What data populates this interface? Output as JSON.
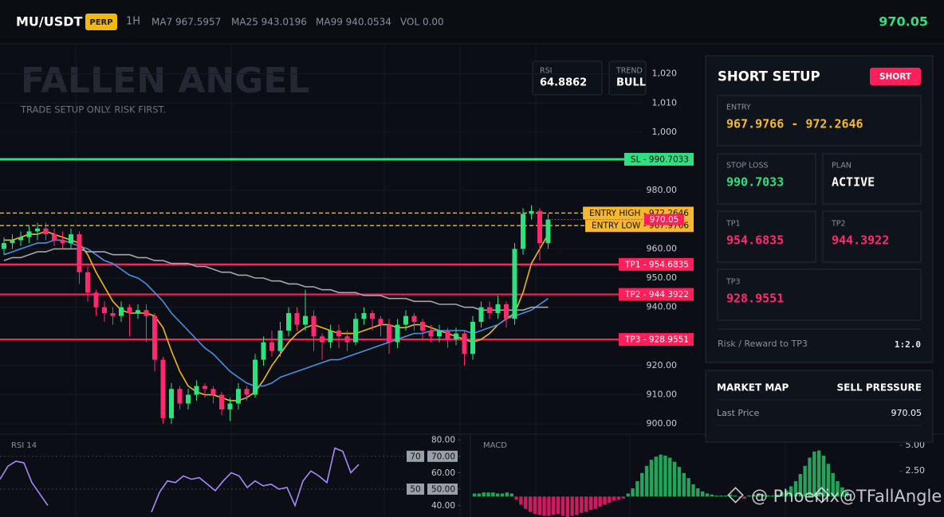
{
  "header": {
    "symbol": "MU/USDT",
    "badge": "PERP",
    "interval": "1H",
    "stats": [
      "MA7 967.5957",
      "MA25 943.0196",
      "MA99 940.0534",
      "VOL 0.00"
    ],
    "price": "970.05"
  },
  "watermark": {
    "title": "FALLEN ANGEL",
    "subtitle": "TRADE SETUP ONLY. RISK FIRST.",
    "credit": "@ Phoenix@TFallAngle"
  },
  "indicators": [
    {
      "label": "RSI",
      "value": "64.8862"
    },
    {
      "label": "TREND",
      "value": "BULL"
    }
  ],
  "panel": {
    "title": "SHORT SETUP",
    "badge": "SHORT",
    "entry": {
      "label": "ENTRY",
      "value": "967.9766 - 972.2646"
    },
    "cells": [
      {
        "label": "STOP LOSS",
        "value": "990.7033"
      },
      {
        "label": "PLAN",
        "value": "ACTIVE"
      },
      {
        "label": "TP1",
        "value": "954.6835"
      },
      {
        "label": "TP2",
        "value": "944.3922"
      },
      {
        "label": "TP3",
        "value": "928.9551"
      }
    ],
    "footer": {
      "label": "Risk / Reward to TP3",
      "value": "1:2.0"
    }
  },
  "market": {
    "title": "MARKET MAP",
    "status": "SELL PRESSURE",
    "rows": [
      [
        "Last Price",
        "970.05"
      ]
    ]
  },
  "chart_data": [
    {
      "type": "candlestick",
      "open": [
        960,
        962,
        963,
        964,
        966,
        967,
        965,
        963,
        962,
        965,
        952,
        945,
        940,
        938,
        937,
        940,
        938,
        939,
        937,
        922,
        902,
        912,
        907,
        910,
        913,
        912,
        910,
        905,
        907,
        912,
        910,
        922,
        928,
        925,
        932,
        938,
        934,
        937,
        930,
        928,
        932,
        930,
        928,
        936,
        938,
        936,
        934,
        928,
        934,
        937,
        935,
        932,
        930,
        932,
        929,
        931,
        924,
        935,
        940,
        938,
        941,
        936,
        960,
        972,
        973,
        962
      ],
      "high": [
        964,
        965,
        966,
        968,
        969,
        969,
        967,
        966,
        967,
        966,
        954,
        946,
        942,
        940,
        942,
        941,
        941,
        941,
        938,
        923,
        914,
        913,
        912,
        915,
        914,
        913,
        911,
        909,
        914,
        913,
        924,
        930,
        932,
        935,
        940,
        940,
        946,
        939,
        931,
        934,
        934,
        932,
        938,
        940,
        939,
        937,
        936,
        936,
        939,
        938,
        936,
        934,
        934,
        933,
        933,
        932,
        937,
        942,
        942,
        944,
        942,
        962,
        974,
        975,
        974,
        972
      ],
      "low": [
        958,
        960,
        961,
        962,
        963,
        963,
        961,
        960,
        960,
        948,
        942,
        937,
        935,
        934,
        935,
        930,
        936,
        928,
        918,
        900,
        900,
        905,
        905,
        908,
        909,
        907,
        903,
        901,
        905,
        908,
        909,
        920,
        923,
        923,
        930,
        932,
        932,
        925,
        922,
        926,
        926,
        925,
        927,
        934,
        932,
        930,
        924,
        926,
        932,
        932,
        929,
        928,
        928,
        926,
        927,
        920,
        922,
        933,
        936,
        936,
        933,
        934,
        958,
        970,
        956,
        960
      ],
      "close": [
        962,
        963,
        964,
        966,
        967,
        965,
        963,
        962,
        965,
        952,
        945,
        940,
        938,
        937,
        940,
        938,
        939,
        937,
        922,
        902,
        912,
        907,
        910,
        913,
        912,
        910,
        905,
        907,
        912,
        910,
        922,
        928,
        925,
        932,
        938,
        934,
        937,
        930,
        928,
        932,
        930,
        928,
        936,
        938,
        936,
        934,
        928,
        934,
        937,
        935,
        932,
        930,
        932,
        929,
        931,
        924,
        935,
        940,
        938,
        941,
        936,
        960,
        972,
        973,
        962,
        970.05
      ],
      "up_color": "#2ee07f",
      "down_color": "#ff2a6d",
      "ylim": [
        896.5,
        1030
      ],
      "yticks": [
        {
          "value": 1020,
          "label": "1,020"
        },
        {
          "value": 1010,
          "label": "1,010"
        },
        {
          "value": 1000,
          "label": "1,000"
        },
        {
          "value": 980,
          "label": "980.00"
        },
        {
          "value": 960,
          "label": "960.00"
        },
        {
          "value": 950,
          "label": "950.00"
        },
        {
          "value": 940,
          "label": "940.00"
        },
        {
          "value": 920,
          "label": "920.00"
        },
        {
          "value": 910,
          "label": "910.00"
        },
        {
          "value": 900,
          "label": "900.00"
        }
      ],
      "grid": true,
      "overlays": [
        {
          "color": "#f0b90b",
          "values": [
            963,
            963,
            964,
            965,
            965,
            966,
            965,
            964,
            963,
            962,
            958,
            952,
            947,
            942,
            939,
            938,
            938,
            938,
            937,
            933,
            925,
            918,
            913,
            911,
            910,
            910,
            909,
            908,
            908,
            909,
            911,
            915,
            920,
            924,
            928,
            931,
            933,
            934,
            933,
            932,
            931,
            931,
            931,
            932,
            933,
            934,
            934,
            933,
            933,
            934,
            934,
            933,
            932,
            931,
            930,
            929,
            928,
            929,
            931,
            934,
            936,
            938,
            945,
            955,
            960,
            965
          ]
        },
        {
          "color": "#4a90e2",
          "values": [
            958,
            959,
            960,
            961,
            962,
            962,
            963,
            963,
            962,
            961,
            960,
            958,
            956,
            955,
            953,
            951,
            950,
            948,
            945,
            942,
            938,
            935,
            932,
            929,
            926,
            924,
            921,
            918,
            916,
            914,
            913,
            913,
            914,
            916,
            917,
            918,
            919,
            920,
            921,
            922,
            922,
            923,
            924,
            925,
            926,
            927,
            928,
            929,
            930,
            931,
            931,
            932,
            932,
            932,
            932,
            932,
            931,
            932,
            933,
            934,
            936,
            937,
            938,
            939,
            941,
            943
          ]
        },
        {
          "color": "#a3a6ad",
          "values": [
            956,
            957,
            957,
            958,
            959,
            959,
            960,
            960,
            960,
            960,
            959,
            959,
            959,
            958,
            958,
            958,
            957,
            957,
            956,
            956,
            955,
            955,
            955,
            954,
            954,
            953,
            952,
            952,
            951,
            951,
            950,
            950,
            949,
            949,
            948,
            948,
            947,
            947,
            946,
            946,
            945,
            945,
            945,
            944,
            944,
            944,
            943,
            943,
            943,
            942,
            942,
            942,
            941,
            941,
            941,
            940,
            940,
            939,
            939,
            939,
            939,
            939,
            939,
            940,
            940,
            940
          ]
        }
      ],
      "levels": {
        "values": [
          990.7033,
          972.2646,
          967.9766,
          954.6835,
          944.3922,
          928.9551
        ],
        "value_labels": [
          "SL - 990.7033",
          "ENTRY HIGH - 972.2646",
          "ENTRY LOW - 967.9766",
          "TP1 - 954.6835",
          "TP2 - 944.3922",
          "TP3 - 928.9551"
        ],
        "colors": [
          "#2ee07f",
          "#f5b82e",
          "#f5b82e",
          "#ff1f5a",
          "#ff1f5a",
          "#ff1f5a"
        ],
        "dashed": [
          false,
          true,
          true,
          false,
          false,
          false
        ]
      },
      "last_price": 970.05,
      "last_price_color": "#ff1f5a"
    },
    {
      "type": "line",
      "title": "RSI 14",
      "color": "#a78bfa",
      "values": [
        56,
        64,
        67,
        66,
        54,
        47,
        40,
        null,
        null,
        null,
        null,
        null,
        null,
        null,
        null,
        null,
        null,
        null,
        null,
        36,
        48,
        55,
        54,
        58,
        56,
        57,
        53,
        49,
        55,
        60,
        58,
        51,
        55,
        52,
        53,
        50,
        51,
        40,
        55,
        61,
        58,
        54,
        75,
        73,
        60,
        65
      ],
      "ylim": [
        33,
        83.5
      ],
      "yticks": [
        {
          "value": 80,
          "label": "80.00"
        },
        {
          "value": 70,
          "label": "70.00"
        },
        {
          "value": 60,
          "label": "60.00"
        },
        {
          "value": 50,
          "label": "50.00"
        },
        {
          "value": 40,
          "label": "40.00"
        }
      ],
      "levels": [
        70,
        50
      ]
    },
    {
      "type": "bar",
      "title": "MACD",
      "up_color": "#22a55a",
      "down_color": "#d0195e",
      "values": [
        0.3,
        0.3,
        0.4,
        0.4,
        0.4,
        0.3,
        0.3,
        0.4,
        0.3,
        -0.3,
        -0.8,
        -1.2,
        -1.5,
        -1.7,
        -1.8,
        -1.9,
        -1.9,
        -1.8,
        -1.7,
        -1.9,
        -2,
        -1.9,
        -1.8,
        -1.6,
        -1.5,
        -1.3,
        -1.2,
        -1.0,
        -0.8,
        -0.6,
        -0.4,
        -0.3,
        -0.2,
        0.3,
        0.8,
        1.5,
        2.3,
        3.0,
        3.6,
        3.9,
        4.1,
        4.0,
        3.8,
        3.4,
        2.9,
        2.3,
        1.8,
        1.2,
        0.8,
        0.5,
        0.3,
        0.2,
        0.1,
        0.1,
        0.1,
        0.2,
        0.1,
        -0.1,
        -0.2,
        0.1,
        0.2,
        0.3,
        0.2,
        0.1,
        0.1,
        0.2,
        0.4,
        0.6,
        1.0,
        1.5,
        2.2,
        3.0,
        3.8,
        4.4,
        4.5,
        4.0,
        3.2,
        2.3,
        1.5,
        0.9,
        0.5
      ],
      "ylim": [
        -2,
        6.1
      ],
      "yticks": [
        {
          "value": 5,
          "label": "5.00"
        },
        {
          "value": 2.5,
          "label": "2.50"
        }
      ]
    }
  ]
}
